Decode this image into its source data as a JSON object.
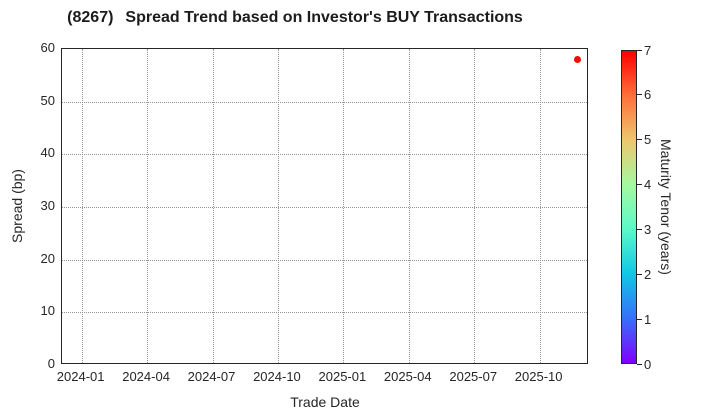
{
  "title": {
    "ticker": "(8267)",
    "text": "Spread Trend based on Investor's BUY Transactions"
  },
  "chart_data": {
    "type": "scatter",
    "title": "(8267)   Spread Trend based on Investor's BUY Transactions",
    "xlabel": "Trade Date",
    "ylabel": "Spread (bp)",
    "grid": "dotted",
    "x_axis": {
      "tick_labels": [
        "2024-01",
        "2024-04",
        "2024-07",
        "2024-10",
        "2025-01",
        "2025-04",
        "2025-07",
        "2025-10"
      ],
      "range": [
        "2023-12-04",
        "2025-12-09"
      ]
    },
    "y_axis": {
      "ticks": [
        0,
        10,
        20,
        30,
        40,
        50,
        60
      ],
      "range": [
        0,
        60
      ]
    },
    "points": [
      {
        "trade_date": "2025-11-24",
        "spread_bp": 58,
        "maturity_years": 7,
        "color": "#f10c00"
      }
    ],
    "colorbar": {
      "label": "Maturity Tenor (years)",
      "range": [
        0,
        7
      ],
      "ticks": [
        0,
        1,
        2,
        3,
        4,
        5,
        6,
        7
      ],
      "colormap": "rainbow",
      "stops": [
        {
          "value": 0,
          "color": "#8000ff"
        },
        {
          "value": 1,
          "color": "#376ff9"
        },
        {
          "value": 2,
          "color": "#12c7e6"
        },
        {
          "value": 3,
          "color": "#5bf9c8"
        },
        {
          "value": 4,
          "color": "#a4f99f"
        },
        {
          "value": 5,
          "color": "#edc76f"
        },
        {
          "value": 6,
          "color": "#ff6f39"
        },
        {
          "value": 7,
          "color": "#ff0000"
        }
      ]
    }
  },
  "colors": {
    "spine": "#262626",
    "grid": "#949494",
    "text": "#262626"
  }
}
